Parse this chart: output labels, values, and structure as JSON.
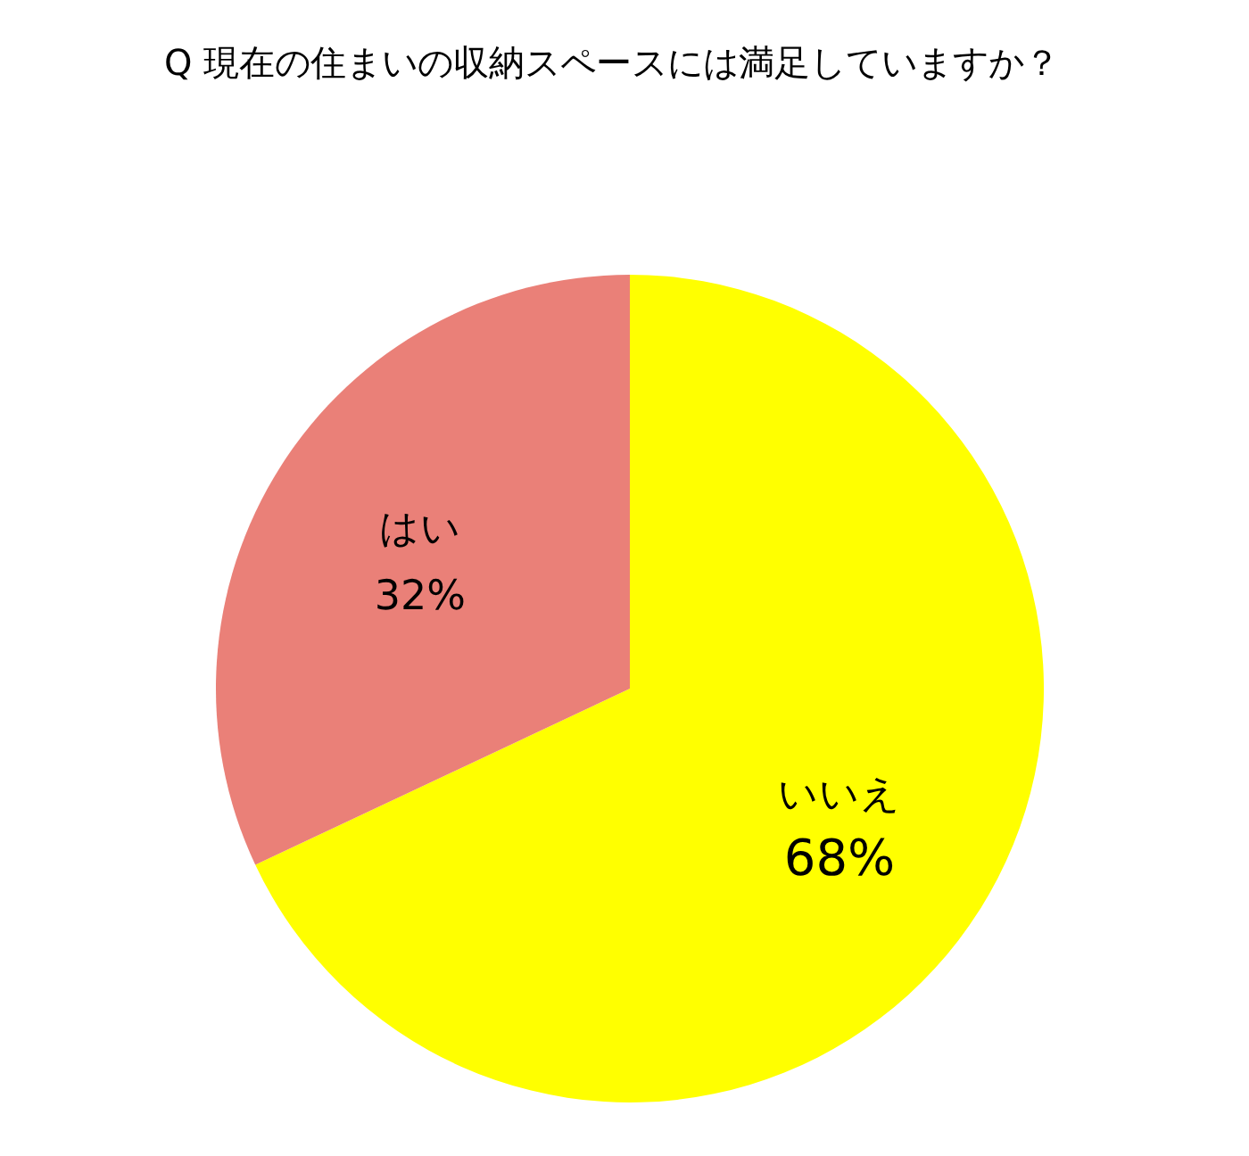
{
  "chart_data": {
    "type": "pie",
    "title": "Q 現在の住まいの収納スペースには満足していますか？",
    "categories": [
      "いいえ",
      "はい"
    ],
    "values": [
      68,
      32
    ],
    "colors": [
      "#ffff00",
      "#ea8078"
    ],
    "value_labels": [
      "68%",
      "32%"
    ]
  }
}
